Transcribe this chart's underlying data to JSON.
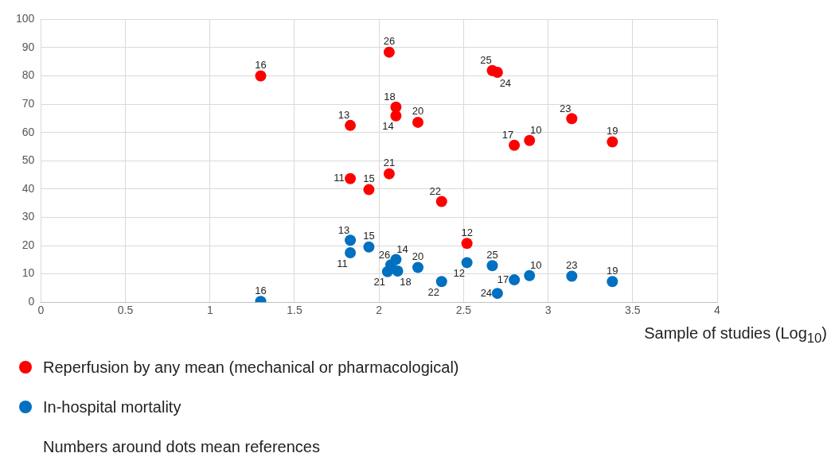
{
  "chart_data": {
    "type": "scatter",
    "xlabel": "Sample of studies (Log$_{10}$)",
    "xlim": [
      0,
      4
    ],
    "xticks": [
      0,
      0.5,
      1,
      1.5,
      2,
      2.5,
      3,
      3.5,
      4
    ],
    "ylim": [
      0,
      100
    ],
    "yticks": [
      0,
      10,
      20,
      30,
      40,
      50,
      60,
      70,
      80,
      90,
      100
    ],
    "grid": true,
    "legend": "bottom",
    "marker": "circle",
    "series": [
      {
        "name": "Reperfusion by any mean (mechanical or pharmacological)",
        "color": "#ff0000",
        "x": [
          1.3,
          2.06,
          2.67,
          2.7,
          2.1,
          2.1,
          2.23,
          1.83,
          2.8,
          2.89,
          3.14,
          3.38,
          2.06,
          1.83,
          1.94,
          2.37,
          2.52
        ],
        "values": [
          80,
          88.4,
          81.9,
          81.3,
          69,
          65.9,
          63.6,
          62.5,
          55.5,
          57.2,
          64.9,
          56.7,
          45.4,
          43.7,
          39.8,
          35.6,
          20.8
        ]
      },
      {
        "name": "In-hospital mortality",
        "color": "#0070c0",
        "x": [
          1.83,
          1.94,
          1.83,
          2.1,
          2.07,
          2.05,
          2.11,
          2.23,
          2.37,
          2.52,
          2.67,
          2.7,
          2.8,
          2.89,
          3.14,
          3.38,
          1.3
        ],
        "values": [
          21.9,
          19.5,
          17.5,
          15.1,
          13.2,
          10.8,
          11.0,
          12.3,
          7.3,
          14.0,
          12.9,
          3.1,
          7.9,
          9.4,
          9.2,
          7.3,
          0.3
        ]
      }
    ],
    "annotations": [
      {
        "text": "16",
        "x": 1.3,
        "y": 80
      },
      {
        "text": "26",
        "x": 2.06,
        "y": 88.4
      },
      {
        "text": "25",
        "x": 2.67,
        "y": 81.9
      },
      {
        "text": "24",
        "x": 2.7,
        "y": 81.3
      },
      {
        "text": "18",
        "x": 2.1,
        "y": 69
      },
      {
        "text": "14",
        "x": 2.1,
        "y": 65.9
      },
      {
        "text": "20",
        "x": 2.23,
        "y": 63.6
      },
      {
        "text": "13",
        "x": 1.83,
        "y": 62.5
      },
      {
        "text": "17",
        "x": 2.8,
        "y": 55.5
      },
      {
        "text": "10",
        "x": 2.89,
        "y": 57.2
      },
      {
        "text": "23",
        "x": 3.14,
        "y": 64.9
      },
      {
        "text": "19",
        "x": 3.38,
        "y": 56.7
      },
      {
        "text": "21",
        "x": 2.06,
        "y": 45.4
      },
      {
        "text": "11",
        "x": 1.83,
        "y": 43.7
      },
      {
        "text": "15",
        "x": 1.94,
        "y": 39.8
      },
      {
        "text": "22",
        "x": 2.37,
        "y": 35.6
      },
      {
        "text": "12",
        "x": 2.52,
        "y": 20.8
      },
      {
        "text": "13",
        "x": 1.83,
        "y": 21.9
      },
      {
        "text": "15",
        "x": 1.94,
        "y": 19.5
      },
      {
        "text": "11",
        "x": 1.83,
        "y": 17.5
      },
      {
        "text": "14",
        "x": 2.1,
        "y": 15.1
      },
      {
        "text": "26",
        "x": 2.07,
        "y": 13.2
      },
      {
        "text": "21",
        "x": 2.05,
        "y": 10.8
      },
      {
        "text": "18",
        "x": 2.11,
        "y": 11.0
      },
      {
        "text": "20",
        "x": 2.23,
        "y": 12.3
      },
      {
        "text": "22",
        "x": 2.37,
        "y": 7.3
      },
      {
        "text": "12",
        "x": 2.52,
        "y": 14.0
      },
      {
        "text": "25",
        "x": 2.67,
        "y": 12.9
      },
      {
        "text": "24",
        "x": 2.7,
        "y": 3.1
      },
      {
        "text": "17",
        "x": 2.8,
        "y": 7.9
      },
      {
        "text": "10",
        "x": 2.89,
        "y": 9.4
      },
      {
        "text": "23",
        "x": 3.14,
        "y": 9.2
      },
      {
        "text": "19",
        "x": 3.38,
        "y": 7.3
      },
      {
        "text": "16",
        "x": 1.3,
        "y": 0.3
      },
      "Numbers around dots mean references"
    ]
  }
}
